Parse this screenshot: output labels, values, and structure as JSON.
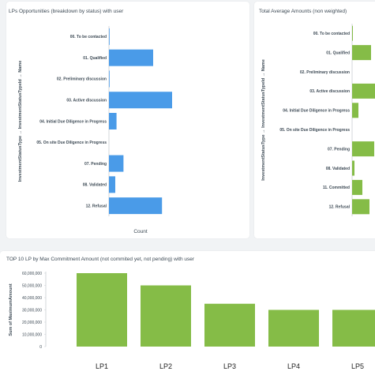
{
  "colors": {
    "blue": "#4a9be8",
    "green": "#85bc47",
    "axis": "#c9cdd2",
    "label": "#3d4a55"
  },
  "chart_data": [
    {
      "type": "bar",
      "orientation": "horizontal",
      "title": "LPs Opportunities (breakdown by status) with user",
      "ylabel": "InvestmentStatusType → InvestmentStatusTypeId → Name",
      "xlabel": "Count",
      "categories": [
        "00. To be contacted",
        "01. Qualified",
        "02. Preliminary discussion",
        "03. Active discussion",
        "04. Initial Due Diligence in Progress",
        "05. On site Due Diligence in Progress",
        "07. Pending",
        "08. Validated",
        "12. Refusal"
      ],
      "values": [
        0.1,
        7,
        0.1,
        10,
        1.2,
        0,
        2.3,
        1,
        8.4
      ],
      "xlim": [
        0,
        10
      ],
      "color": "#4a9be8"
    },
    {
      "type": "bar",
      "orientation": "horizontal",
      "title": "Total Average Amounts (non weighted)",
      "ylabel": "InvestmentStatusType → InvestmentStatusTypeId → Name",
      "categories": [
        "00. To be contacted",
        "01. Qualified",
        "02. Preliminary discussion",
        "03. Active discussion",
        "04. Initial Due Diligence in Progress",
        "05. On site Due Diligence in Progress",
        "07. Pending",
        "08. Validated",
        "11. Committed",
        "12. Refusal"
      ],
      "values": [
        0.1,
        2.4,
        0,
        3.1,
        0.8,
        0,
        2.8,
        0.3,
        1.3,
        2.2
      ],
      "xlim": [
        0,
        3
      ],
      "color": "#85bc47"
    },
    {
      "type": "bar",
      "title": "TOP 10 LP by Max Commitment Amount (not commited yet, not pending) with user",
      "ylabel": "Sum of MaximumAmount",
      "categories": [
        "LP1",
        "LP2",
        "LP3",
        "LP4",
        "LP5"
      ],
      "values": [
        60000000,
        50000000,
        35000000,
        30000000,
        30000000
      ],
      "yticks": [
        "0",
        "10,000,000",
        "20,000,000",
        "30,000,000",
        "40,000,000",
        "50,000,000",
        "60,000,000"
      ],
      "ylim": [
        0,
        60000000
      ],
      "color": "#85bc47"
    }
  ]
}
